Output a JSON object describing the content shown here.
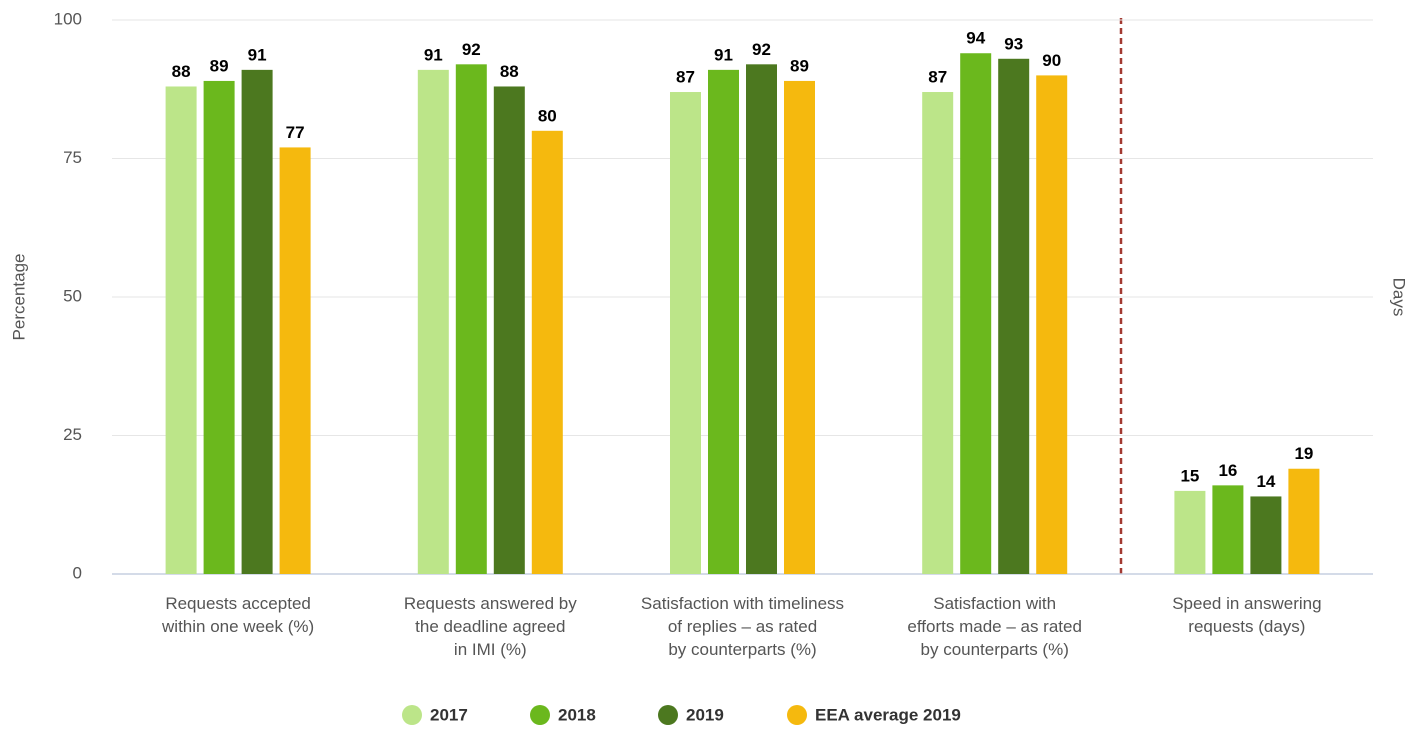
{
  "chart_data": {
    "type": "bar",
    "categories": [
      "Requests accepted\nwithin one week (%)",
      "Requests answered by\nthe deadline agreed\nin IMI (%)",
      "Satisfaction with timeliness\nof replies – as rated\nby counterparts (%)",
      "Satisfaction with\nefforts made – as rated\nby counterparts (%)",
      "Speed in answering\nrequests (days)"
    ],
    "series": [
      {
        "name": "2017",
        "color": "#bce589",
        "values": [
          88,
          91,
          87,
          87,
          15
        ]
      },
      {
        "name": "2018",
        "color": "#6bb81d",
        "values": [
          89,
          92,
          91,
          94,
          16
        ]
      },
      {
        "name": "2019",
        "color": "#4c781f",
        "values": [
          91,
          88,
          92,
          93,
          14
        ]
      },
      {
        "name": "EEA average 2019",
        "color": "#f5b90e",
        "values": [
          77,
          80,
          89,
          90,
          19
        ]
      }
    ],
    "y_label": "Percentage",
    "y2_label": "Days",
    "ylim": [
      0,
      100
    ],
    "yticks": [
      0,
      25,
      50,
      75,
      100
    ],
    "grid": true
  }
}
